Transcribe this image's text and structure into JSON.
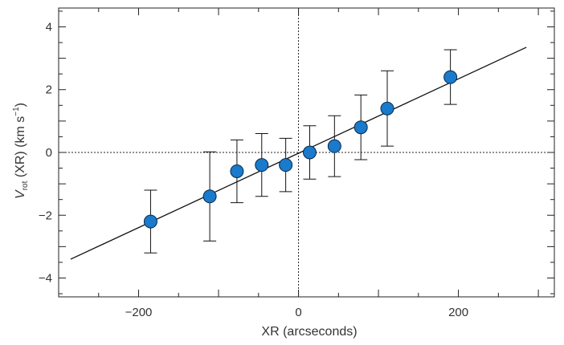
{
  "chart_data": {
    "type": "scatter",
    "xlabel": "XR (arcseconds)",
    "ylabel": {
      "main": "V",
      "sub": "rot",
      "rest": " (XR) (km s",
      "sup": "−1",
      "close": ")"
    },
    "xlim": [
      -300,
      320
    ],
    "ylim": [
      -4.6,
      4.6
    ],
    "x_ticks": [
      -200,
      0,
      200
    ],
    "x_tick_labels": [
      "−200",
      "0",
      "200"
    ],
    "y_ticks": [
      -4,
      -2,
      0,
      2,
      4
    ],
    "y_tick_labels": [
      "−4",
      "−2",
      "0",
      "2",
      "4"
    ],
    "grid": false,
    "reference_lines": {
      "x": 0,
      "y": 0,
      "style": "dotted"
    },
    "fit_line": {
      "x": [
        -285,
        285
      ],
      "y": [
        -3.4,
        3.35
      ]
    },
    "series": [
      {
        "marker_color": "#1a7acb",
        "points": [
          {
            "x": -185,
            "y": -2.2,
            "err": 1.0
          },
          {
            "x": -111,
            "y": -1.4,
            "err": 1.42
          },
          {
            "x": -77,
            "y": -0.6,
            "err": 1.0
          },
          {
            "x": -46,
            "y": -0.4,
            "err": 1.0
          },
          {
            "x": -16,
            "y": -0.4,
            "err": 0.85
          },
          {
            "x": 14,
            "y": 0.0,
            "err": 0.85
          },
          {
            "x": 45,
            "y": 0.2,
            "err": 0.97
          },
          {
            "x": 78,
            "y": 0.8,
            "err": 1.03
          },
          {
            "x": 111,
            "y": 1.4,
            "err": 1.2
          },
          {
            "x": 190,
            "y": 2.4,
            "err": 0.87
          }
        ]
      }
    ]
  }
}
